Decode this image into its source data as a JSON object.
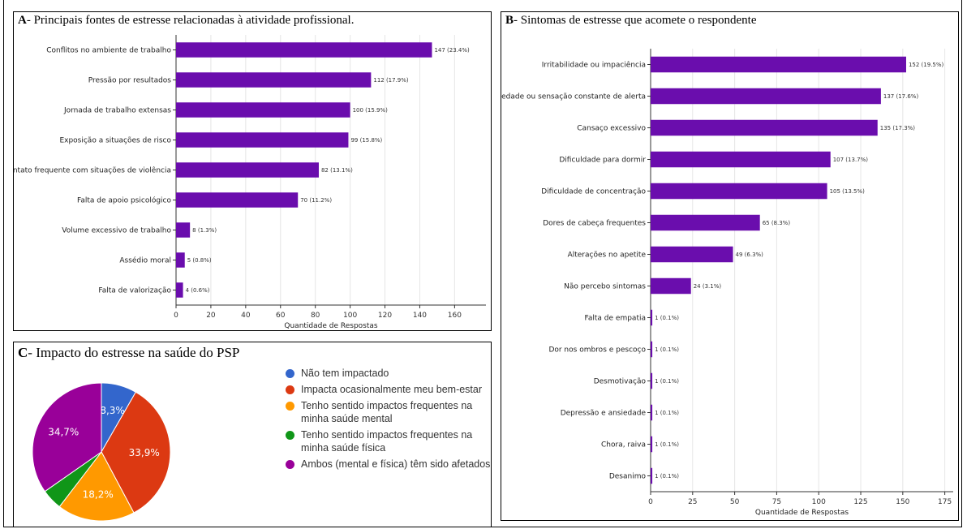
{
  "panels": {
    "a": {
      "letter": "A",
      "title": "- Principais fontes de estresse relacionadas à atividade profissional."
    },
    "b": {
      "letter": "B",
      "title": "- Sintomas de estresse que acomete o respondente"
    },
    "c": {
      "letter": "C",
      "title": "- Impacto do estresse na saúde do PSP"
    }
  },
  "chart_data": [
    {
      "id": "A",
      "type": "bar",
      "orientation": "horizontal",
      "categories": [
        "Conflitos no ambiente de trabalho",
        "Pressão por resultados",
        "Jornada de trabalho extensas",
        "Exposição a situações de risco",
        "Contato frequente com situações de violência",
        "Falta de apoio psicológico",
        "Volume excessivo de trabalho",
        "Assédio moral",
        "Falta de valorização"
      ],
      "values": [
        147,
        112,
        100,
        99,
        82,
        70,
        8,
        5,
        4
      ],
      "data_labels": [
        "147 (23.4%)",
        "112 (17.9%)",
        "100 (15.9%)",
        "99 (15.8%)",
        "82 (13.1%)",
        "70 (11.2%)",
        "8 (1.3%)",
        "5 (0.8%)",
        "4 (0.6%)"
      ],
      "xlabel": "Quantidade de Respostas",
      "xlim": [
        0,
        178
      ],
      "xticks": [
        0,
        20,
        40,
        60,
        80,
        100,
        120,
        140,
        160
      ],
      "grid": true,
      "color": "#6a0dad"
    },
    {
      "id": "B",
      "type": "bar",
      "orientation": "horizontal",
      "categories": [
        "Irritabilidade ou impaciência",
        "Ansiedade ou sensação constante de alerta",
        "Cansaço excessivo",
        "Dificuldade para dormir",
        "Dificuldade de concentração",
        "Dores de cabeça frequentes",
        "Alterações no apetite",
        "Não percebo sintomas",
        "Falta de empatia",
        "Dor nos ombros e pescoço",
        "Desmotivação",
        "Depressão e ansiedade",
        "Chora, raiva",
        "Desanimo"
      ],
      "values": [
        152,
        137,
        135,
        107,
        105,
        65,
        49,
        24,
        1,
        1,
        1,
        1,
        1,
        1
      ],
      "data_labels": [
        "152 (19.5%)",
        "137 (17.6%)",
        "135 (17.3%)",
        "107 (13.7%)",
        "105 (13.5%)",
        "65 (8.3%)",
        "49 (6.3%)",
        "24 (3.1%)",
        "1 (0.1%)",
        "1 (0.1%)",
        "1 (0.1%)",
        "1 (0.1%)",
        "1 (0.1%)",
        "1 (0.1%)"
      ],
      "xlabel": "Quantidade de Respostas",
      "xlim": [
        0,
        180
      ],
      "xticks": [
        0,
        25,
        50,
        75,
        100,
        125,
        150,
        175
      ],
      "grid": true,
      "color": "#6a0dad"
    },
    {
      "id": "C",
      "type": "pie",
      "labels": [
        "Não tem impactado",
        "Impacta ocasionalmente meu bem-estar",
        "Tenho sentido impactos frequentes na minha saúde mental",
        "Tenho sentido impactos frequentes na minha saúde física",
        "Ambos (mental e física) têm sido afetados"
      ],
      "values": [
        8.3,
        33.9,
        18.2,
        4.9,
        34.7
      ],
      "data_labels": [
        "8,3%",
        "33,9%",
        "18,2%",
        "",
        "34,7%"
      ],
      "colors": [
        "#3366cc",
        "#dc3912",
        "#ff9900",
        "#109618",
        "#990099"
      ],
      "legend_position": "right"
    }
  ]
}
